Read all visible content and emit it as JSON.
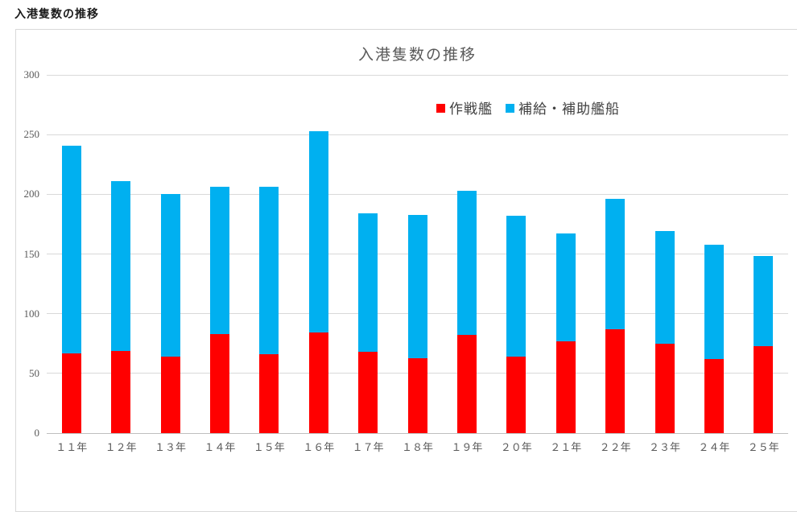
{
  "page": {
    "title": "入港隻数の推移"
  },
  "chart_data": {
    "type": "bar",
    "stacked": true,
    "title": "入港隻数の推移",
    "xlabel": "",
    "ylabel": "",
    "ylim": [
      0,
      300
    ],
    "ytick_step": 50,
    "grid": true,
    "legend_position": "top-inside-right",
    "categories": [
      "１１年",
      "１２年",
      "１３年",
      "１４年",
      "１５年",
      "１６年",
      "１７年",
      "１８年",
      "１９年",
      "２０年",
      "２１年",
      "２２年",
      "２３年",
      "２４年",
      "２５年"
    ],
    "series": [
      {
        "name": "作戦艦",
        "color": "#ff0000",
        "values": [
          67,
          69,
          64,
          83,
          66,
          84,
          68,
          63,
          82,
          64,
          77,
          87,
          75,
          62,
          73
        ]
      },
      {
        "name": "補給・補助艦船",
        "color": "#00b0f0",
        "values": [
          174,
          142,
          136,
          123,
          140,
          169,
          116,
          120,
          121,
          118,
          90,
          109,
          94,
          96,
          75
        ]
      }
    ],
    "totals": [
      241,
      211,
      200,
      206,
      206,
      253,
      184,
      183,
      203,
      182,
      167,
      196,
      169,
      158,
      148
    ]
  },
  "style_colors": {
    "combat_red": "#ff0000",
    "supply_blue": "#00b0f0",
    "gridline": "#d9d9d9",
    "axis_line": "#bfbfbf",
    "tick_text": "#595959",
    "title_text": "#595959",
    "legend_text": "#404040",
    "frame_border": "#d9d9d9"
  }
}
